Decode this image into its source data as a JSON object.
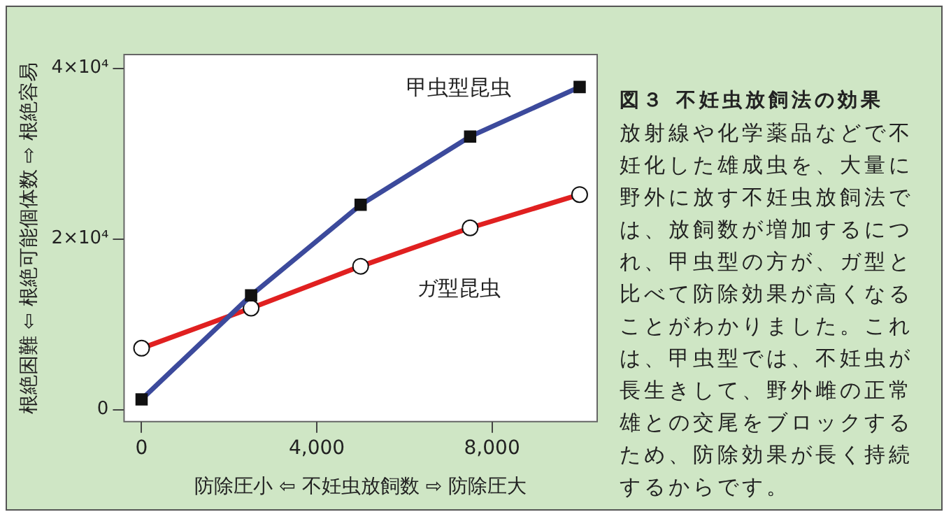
{
  "chart_data": {
    "type": "line",
    "title": "図３ 不妊虫放飼法の効果",
    "annotations": [
      "放射線や化学薬品などで不妊化した雄成虫を、大量に野外に放す不妊虫放飼法では、放飼数が増加するにつれ、甲虫型の方が、ガ型と比べて防除効果が高くなることがわかりました。これは、甲虫型では、不妊虫が長生きして、野外雌の正常雄との交尾をブロックするため、防除効果が長く持続するからです。"
    ],
    "xlabel": "防除圧小 ⇦ 不妊虫放飼数 ⇨ 防除圧大",
    "ylabel": "根絶困難 ⇦ 根絶可能個体数 ⇨ 根絶容易",
    "x": [
      0,
      2500,
      5000,
      7500,
      10000
    ],
    "series": [
      {
        "name": "甲虫型昆虫",
        "color": "#3c4a9c",
        "marker": "square",
        "values": [
          1200,
          13400,
          24000,
          32000,
          37800
        ]
      },
      {
        "name": "ガ型昆虫",
        "color": "#e02020",
        "marker": "circle",
        "values": [
          7200,
          11900,
          16800,
          21300,
          25200
        ]
      }
    ],
    "xlim": [
      -400,
      10400
    ],
    "xticks": [
      {
        "value": 0,
        "label": "0"
      },
      {
        "value": 4000,
        "label": "4,000"
      },
      {
        "value": 8000,
        "label": "8,000"
      }
    ],
    "ylim": [
      -1400,
      41600
    ],
    "yticks": [
      {
        "value": 0,
        "label": "0"
      },
      {
        "value": 20000,
        "label": "2×10⁴"
      },
      {
        "value": 40000,
        "label": "4×10⁴"
      }
    ],
    "grid": false,
    "legend": false
  }
}
